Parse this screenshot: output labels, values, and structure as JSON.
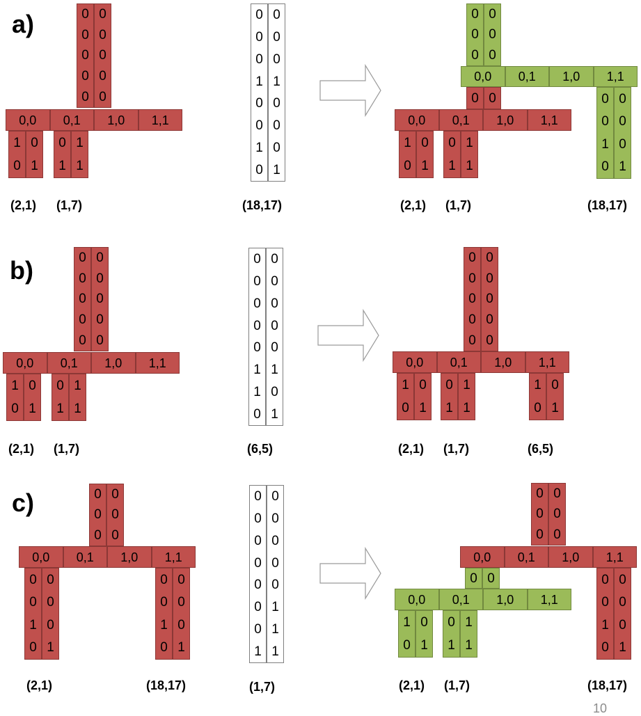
{
  "row_labels": [
    "a)",
    "b)",
    "c)"
  ],
  "page_number": "10",
  "bar_cells": [
    "0,0",
    "0,1",
    "1,0",
    "1,1"
  ],
  "digits": {
    "block_top5": [
      [
        "0",
        "0"
      ],
      [
        "0",
        "0"
      ],
      [
        "0",
        "0"
      ],
      [
        "0",
        "0"
      ],
      [
        "0",
        "0"
      ]
    ],
    "block_top3": [
      [
        "0",
        "0"
      ],
      [
        "0",
        "0"
      ],
      [
        "0",
        "0"
      ]
    ],
    "block_top1": [
      [
        "0",
        "0"
      ]
    ],
    "leaf_2_1": [
      [
        "1",
        "0"
      ],
      [
        "0",
        "1"
      ]
    ],
    "leaf_1_7": [
      [
        "0",
        "1"
      ],
      [
        "1",
        "1"
      ]
    ],
    "leaf_6_5": [
      [
        "1",
        "0"
      ],
      [
        "0",
        "1"
      ]
    ],
    "leaf_18_17": [
      [
        "0",
        "0"
      ],
      [
        "0",
        "0"
      ],
      [
        "1",
        "0"
      ],
      [
        "0",
        "1"
      ]
    ],
    "vec_a": [
      [
        "0",
        "0"
      ],
      [
        "0",
        "0"
      ],
      [
        "0",
        "0"
      ],
      [
        "1",
        "1"
      ],
      [
        "0",
        "0"
      ],
      [
        "0",
        "0"
      ],
      [
        "1",
        "0"
      ],
      [
        "0",
        "1"
      ]
    ],
    "vec_b": [
      [
        "0",
        "0"
      ],
      [
        "0",
        "0"
      ],
      [
        "0",
        "0"
      ],
      [
        "0",
        "0"
      ],
      [
        "0",
        "0"
      ],
      [
        "1",
        "1"
      ],
      [
        "1",
        "0"
      ],
      [
        "0",
        "1"
      ]
    ],
    "vec_c": [
      [
        "0",
        "0"
      ],
      [
        "0",
        "0"
      ],
      [
        "0",
        "0"
      ],
      [
        "0",
        "0"
      ],
      [
        "0",
        "0"
      ],
      [
        "0",
        "1"
      ],
      [
        "0",
        "1"
      ],
      [
        "1",
        "1"
      ]
    ]
  },
  "coords": {
    "a": {
      "left": [
        "(2,1)",
        "(1,7)"
      ],
      "vector": "(18,17)",
      "right": [
        "(2,1)",
        "(1,7)",
        "(18,17)"
      ]
    },
    "b": {
      "left": [
        "(2,1)",
        "(1,7)"
      ],
      "vector": "(6,5)",
      "right": [
        "(2,1)",
        "(1,7)",
        "(6,5)"
      ]
    },
    "c": {
      "left": [
        "(2,1)",
        "(18,17)"
      ],
      "vector": "(1,7)",
      "right": [
        "(2,1)",
        "(1,7)",
        "(18,17)"
      ]
    }
  },
  "colors": {
    "red": "#c0504d",
    "green": "#9bbb59",
    "white": "#ffffff"
  }
}
